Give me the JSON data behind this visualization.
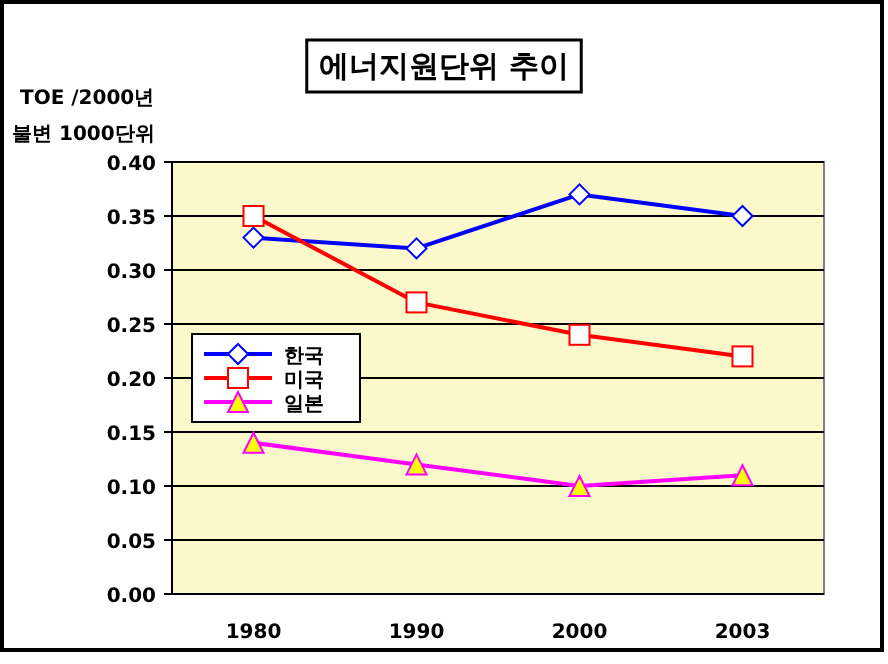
{
  "chart_data": {
    "type": "line",
    "title": "에너지원단위 추이",
    "ylabel": "TOE /2000년 불변 1000단위",
    "categories": [
      "1980",
      "1990",
      "2000",
      "2003"
    ],
    "series": [
      {
        "name": "한국",
        "color": "#0000ff",
        "marker": "diamond",
        "values": [
          0.33,
          0.32,
          0.37,
          0.35
        ]
      },
      {
        "name": "미국",
        "color": "#ff0000",
        "marker": "square",
        "values": [
          0.35,
          0.27,
          0.24,
          0.22
        ]
      },
      {
        "name": "일본",
        "color": "#ff00ff",
        "marker": "triangle",
        "values": [
          0.14,
          0.12,
          0.1,
          0.11
        ]
      }
    ],
    "ylim": [
      0,
      0.4
    ],
    "yticks": [
      {
        "value": 0,
        "label": "0.00"
      },
      {
        "value": 0.05,
        "label": "0.05"
      },
      {
        "value": 0.1,
        "label": "0.10"
      },
      {
        "value": 0.15,
        "label": "0.15"
      },
      {
        "value": 0.2,
        "label": "0.20"
      },
      {
        "value": 0.25,
        "label": "0.25"
      },
      {
        "value": 0.3,
        "label": "0.30"
      },
      {
        "value": 0.35,
        "label": "0.35"
      },
      {
        "value": 0.4,
        "label": "0.40"
      }
    ],
    "grid": "y",
    "legend": "left"
  }
}
